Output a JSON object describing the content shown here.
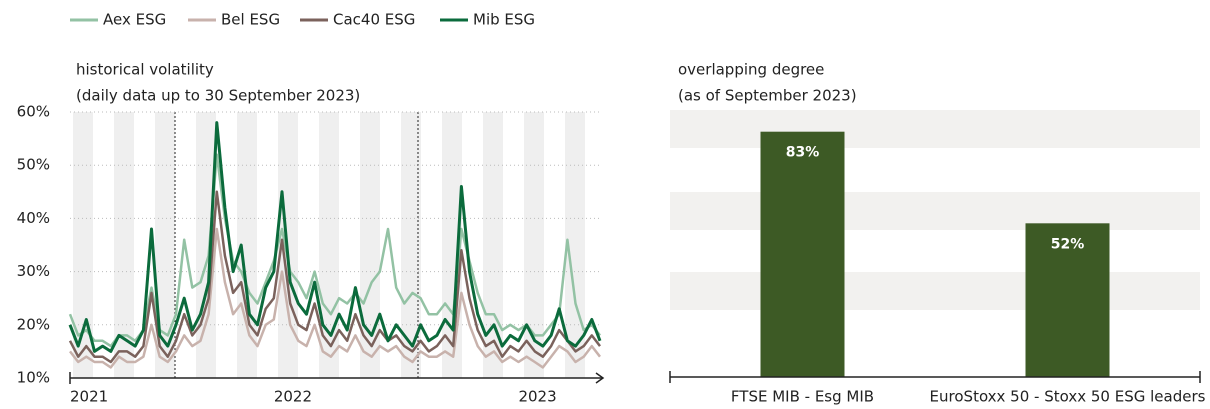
{
  "chart_data": [
    {
      "type": "line",
      "title": "historical volatility",
      "subtitle": "(daily data up to 30 September 2023)",
      "categories": [
        "2021",
        null,
        null,
        null,
        null,
        null,
        null,
        null,
        null,
        null,
        null,
        null,
        null,
        null,
        null,
        null,
        null,
        null,
        null,
        null,
        null,
        null,
        null,
        null,
        null,
        "2022",
        null,
        null,
        null,
        null,
        null,
        null,
        null,
        null,
        null,
        null,
        null,
        null,
        null,
        null,
        null,
        null,
        null,
        null,
        null,
        null,
        null,
        null,
        null,
        null,
        null,
        null,
        null,
        null,
        null,
        "2023",
        null,
        null,
        null,
        null,
        null,
        null,
        null,
        null,
        null,
        null
      ],
      "series": [
        {
          "name": "Aex ESG",
          "color": "#93c2a4",
          "values": [
            22,
            18,
            19,
            17,
            17,
            16,
            18,
            18,
            17,
            19,
            27,
            19,
            18,
            22,
            36,
            27,
            28,
            33,
            52,
            40,
            32,
            30,
            26,
            24,
            28,
            32,
            38,
            30,
            28,
            25,
            30,
            24,
            22,
            25,
            24,
            26,
            24,
            28,
            30,
            38,
            27,
            24,
            26,
            25,
            22,
            22,
            24,
            22,
            38,
            32,
            26,
            22,
            22,
            19,
            20,
            19,
            20,
            18,
            18,
            20,
            22,
            36,
            24,
            19,
            20,
            18
          ]
        },
        {
          "name": "Bel ESG",
          "color": "#c8b2ac",
          "values": [
            15,
            13,
            14,
            13,
            13,
            12,
            14,
            13,
            13,
            14,
            20,
            14,
            13,
            15,
            18,
            16,
            17,
            22,
            38,
            28,
            22,
            24,
            18,
            16,
            20,
            21,
            30,
            20,
            17,
            16,
            20,
            15,
            14,
            16,
            15,
            18,
            15,
            14,
            16,
            15,
            16,
            14,
            13,
            15,
            14,
            14,
            15,
            14,
            26,
            20,
            16,
            14,
            15,
            13,
            14,
            13,
            14,
            13,
            12,
            14,
            16,
            15,
            13,
            14,
            16,
            14
          ]
        },
        {
          "name": "Cac40 ESG",
          "color": "#7b625c",
          "values": [
            17,
            14,
            16,
            14,
            14,
            13,
            15,
            15,
            14,
            16,
            26,
            16,
            14,
            17,
            22,
            18,
            20,
            25,
            45,
            33,
            26,
            28,
            20,
            18,
            23,
            25,
            36,
            24,
            20,
            19,
            24,
            18,
            16,
            19,
            17,
            22,
            18,
            16,
            19,
            17,
            18,
            16,
            15,
            17,
            15,
            16,
            18,
            16,
            34,
            25,
            19,
            16,
            17,
            14,
            16,
            15,
            17,
            15,
            14,
            16,
            19,
            17,
            15,
            16,
            18,
            16
          ]
        },
        {
          "name": "Mib ESG",
          "color": "#0b6b3c",
          "values": [
            20,
            16,
            21,
            15,
            16,
            15,
            18,
            17,
            16,
            19,
            38,
            18,
            16,
            20,
            25,
            19,
            22,
            28,
            58,
            42,
            30,
            35,
            22,
            20,
            27,
            30,
            45,
            28,
            24,
            22,
            28,
            20,
            18,
            22,
            19,
            27,
            20,
            18,
            22,
            17,
            20,
            18,
            16,
            20,
            17,
            18,
            21,
            19,
            46,
            30,
            22,
            18,
            20,
            16,
            18,
            17,
            20,
            17,
            16,
            18,
            23,
            17,
            16,
            18,
            21,
            17
          ]
        }
      ],
      "ylim": [
        10,
        60
      ],
      "yticks": [
        {
          "value": 10,
          "label": "10%"
        },
        {
          "value": 20,
          "label": "20%"
        },
        {
          "value": 30,
          "label": "30%"
        },
        {
          "value": 40,
          "label": "40%"
        },
        {
          "value": 50,
          "label": "50%"
        },
        {
          "value": 60,
          "label": "60%"
        }
      ],
      "grid": true
    },
    {
      "type": "bar",
      "title": "overlapping degree",
      "subtitle": "(as of September 2023)",
      "categories": [
        "FTSE MIB - Esg MIB",
        "EuroStoxx 50 - Stoxx 50 ESG leaders"
      ],
      "values": [
        83,
        52
      ],
      "value_labels": [
        "83%",
        "52%"
      ],
      "color": "#3d5a25",
      "ylim": [
        0,
        90
      ]
    }
  ]
}
